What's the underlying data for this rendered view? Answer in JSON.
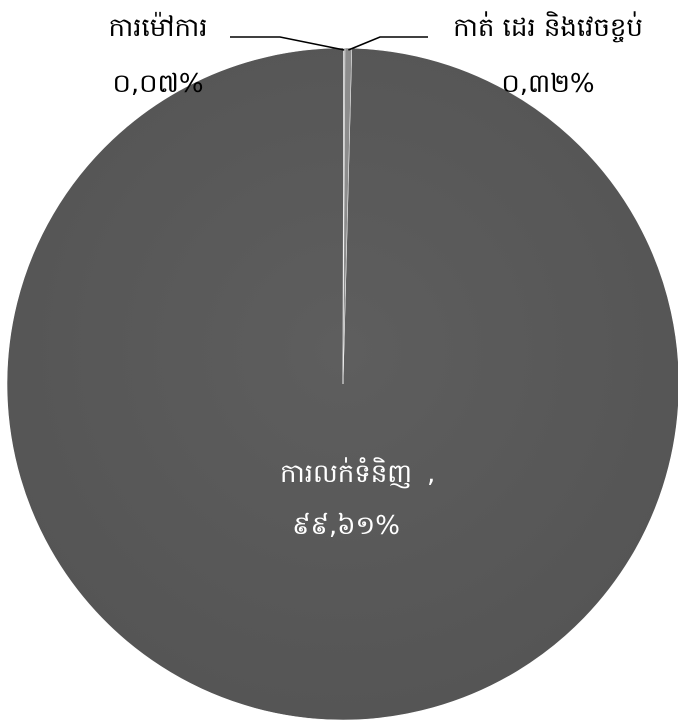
{
  "chart_data": {
    "type": "pie",
    "slices": [
      {
        "label": "ការលក់ទំនិញ",
        "value": 99.61,
        "display": "៩៩,៦១%",
        "color": "#595959"
      },
      {
        "label": "ការម៉ៅការ",
        "value": 0.07,
        "display": "០,០៧%",
        "color": "#a6a6a6"
      },
      {
        "label": "កាត់ ដេរ និងវេចខ្ចប់",
        "value": 0.32,
        "display": "០,៣២%",
        "color": "#8c8c8c"
      }
    ],
    "start_angle_deg": 1.5,
    "direction": "clockwise",
    "legend": "none"
  }
}
